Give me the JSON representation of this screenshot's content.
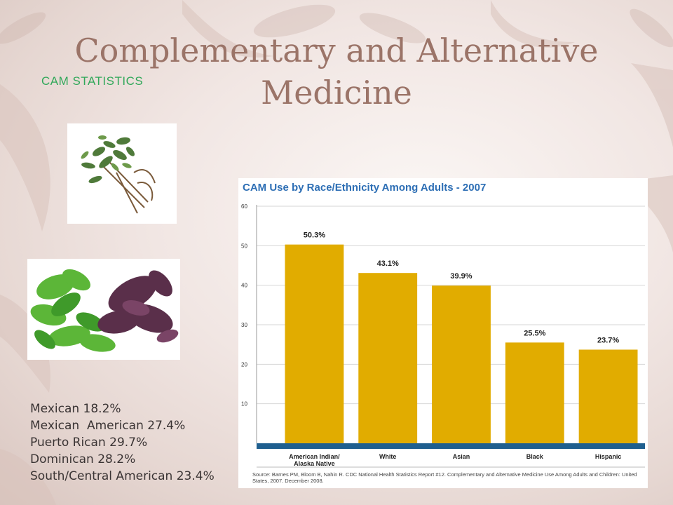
{
  "slide": {
    "title": "Complementary and Alternative Medicine",
    "subtitle": "CAM STATISTICS"
  },
  "images": [
    {
      "name": "herb-bundle-image",
      "description": "bundle of fresh herbs"
    },
    {
      "name": "basil-leaves-image",
      "description": "green and purple basil leaves"
    }
  ],
  "stats": [
    "Mexican 18.2%",
    "Mexican  American 27.4%",
    "Puerto Rican 29.7%",
    "Dominican 28.2%",
    "South/Central American 23.4%"
  ],
  "chart_data": {
    "type": "bar",
    "title": "CAM Use by Race/Ethnicity Among Adults - 2007",
    "categories": [
      "American Indian/\nAlaska Native",
      "White",
      "Asian",
      "Black",
      "Hispanic"
    ],
    "values": [
      50.3,
      43.1,
      39.9,
      25.5,
      23.7
    ],
    "value_labels": [
      "50.3%",
      "43.1%",
      "39.9%",
      "25.5%",
      "23.7%"
    ],
    "yticks": [
      10,
      20,
      30,
      40,
      50,
      60
    ],
    "ylim": [
      0,
      60
    ],
    "xlabel": "",
    "ylabel": "",
    "grid": true,
    "colors": {
      "bar": "#e1ac00",
      "title": "#2e6fb5",
      "baseline": "#1f5f8f",
      "grid": "#d6d6d6"
    },
    "source": "Source: Barnes PM, Bloom B, Nahin R. CDC National Health Statistics Report #12. Complementary and Alternative Medicine Use Among Adults and Children: United States, 2007. December 2008."
  }
}
